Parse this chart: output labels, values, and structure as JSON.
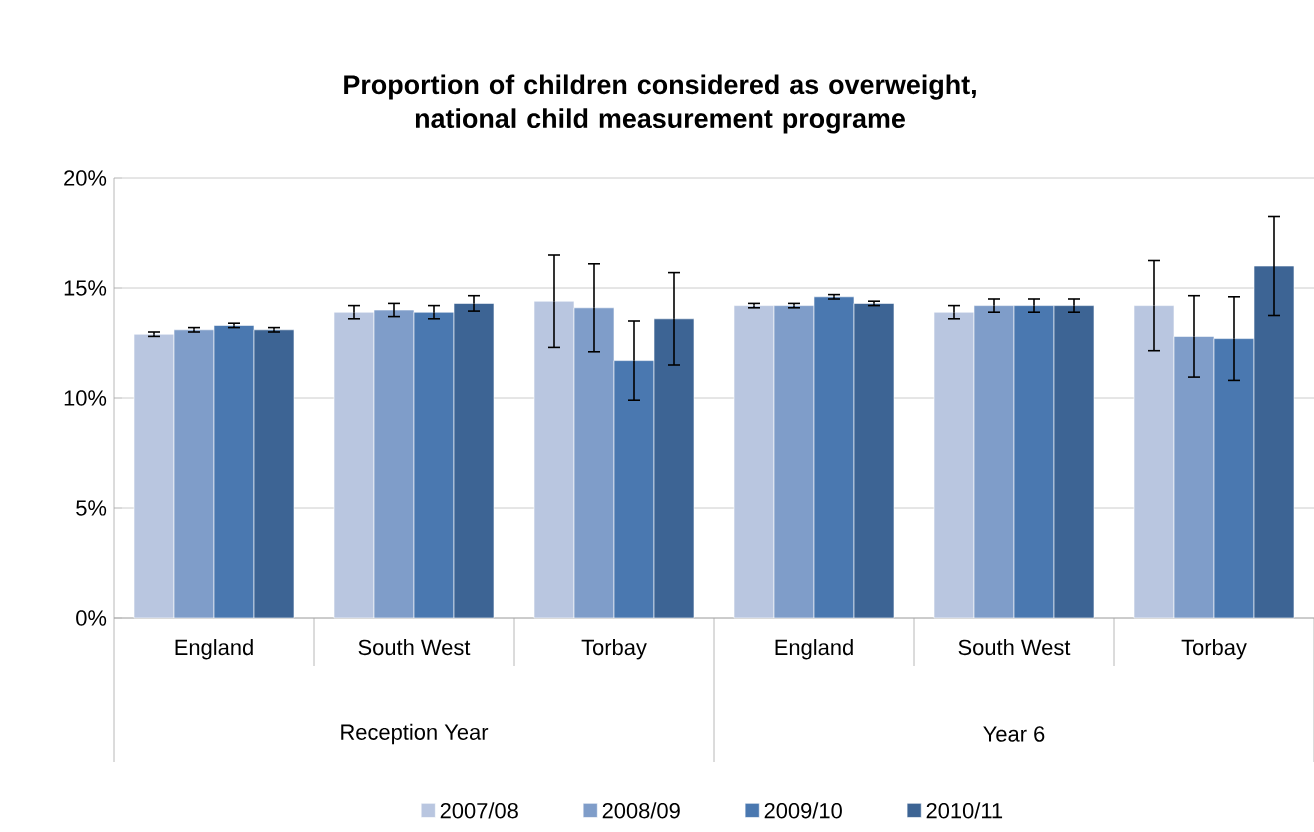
{
  "chart_data": {
    "type": "bar",
    "title": "Proportion of children considered as overweight, national child measurement programe",
    "categories": [
      "England",
      "South West",
      "Torbay",
      "England",
      "South West",
      "Torbay"
    ],
    "annotations": [
      "Reception Year",
      "Year 6"
    ],
    "series": [
      {
        "name": "2007/08",
        "color": "#b9c6e0",
        "values": [
          12.9,
          13.9,
          14.4,
          14.2,
          13.9,
          14.2
        ],
        "errors": [
          0.1,
          0.3,
          2.1,
          0.1,
          0.3,
          2.05
        ]
      },
      {
        "name": "2008/09",
        "color": "#7f9dc9",
        "values": [
          13.1,
          14.0,
          14.1,
          14.2,
          14.2,
          12.8
        ],
        "errors": [
          0.1,
          0.3,
          2.0,
          0.1,
          0.3,
          1.85
        ]
      },
      {
        "name": "2009/10",
        "color": "#4a78b0",
        "values": [
          13.3,
          13.9,
          11.7,
          14.6,
          14.2,
          12.7
        ],
        "errors": [
          0.1,
          0.3,
          1.8,
          0.1,
          0.3,
          1.9
        ]
      },
      {
        "name": "2010/11",
        "color": "#3d6494",
        "values": [
          13.1,
          14.3,
          13.6,
          14.3,
          14.2,
          16.0
        ],
        "errors": [
          0.1,
          0.35,
          2.1,
          0.1,
          0.3,
          2.25
        ]
      }
    ],
    "ylim": [
      0,
      20
    ],
    "yticks": [
      {
        "value": 0,
        "label": "0%"
      },
      {
        "value": 5,
        "label": "5%"
      },
      {
        "value": 10,
        "label": "10%"
      },
      {
        "value": 15,
        "label": "15%"
      },
      {
        "value": 20,
        "label": "20%"
      }
    ],
    "grid": "y",
    "legend": "bottom"
  }
}
